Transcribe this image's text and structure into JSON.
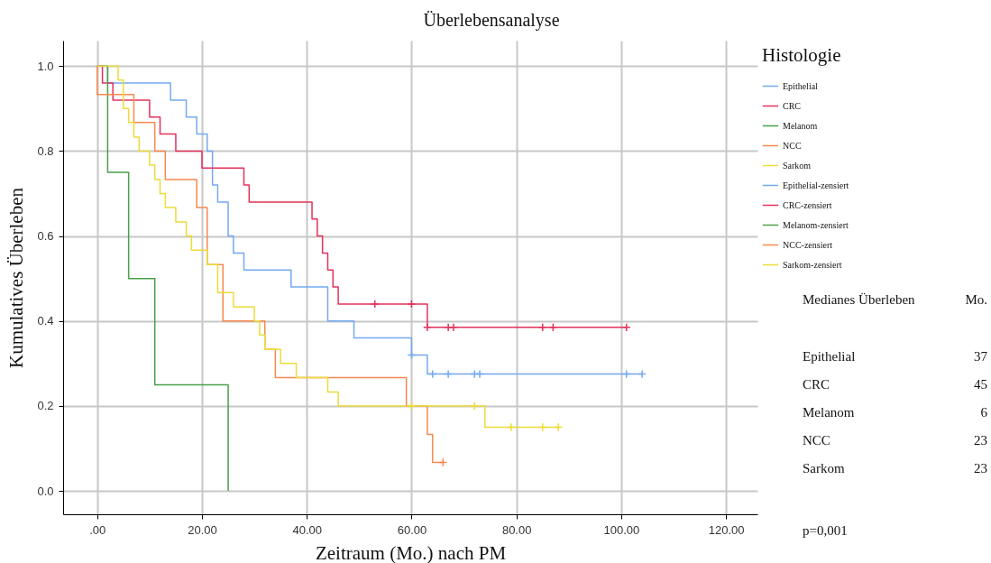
{
  "chart_data": {
    "type": "step",
    "title": "Überlebensanalyse",
    "xlabel": "Zeitraum (Mo.) nach PM",
    "ylabel": "Kumulatives Überleben",
    "legend_title": "Histologie",
    "legend": "right",
    "grid": true,
    "xlim": [
      -6.5,
      126
    ],
    "ylim": [
      -0.055,
      1.06
    ],
    "xticks": [
      {
        "value": 0,
        "label": ".00"
      },
      {
        "value": 20,
        "label": "20.00"
      },
      {
        "value": 40,
        "label": "40.00"
      },
      {
        "value": 60,
        "label": "60.00"
      },
      {
        "value": 80,
        "label": "80.00"
      },
      {
        "value": 100,
        "label": "100.00"
      },
      {
        "value": 120,
        "label": "120.00"
      }
    ],
    "yticks": [
      {
        "value": 0,
        "label": "0.0"
      },
      {
        "value": 0.2,
        "label": "0.2"
      },
      {
        "value": 0.4,
        "label": "0.4"
      },
      {
        "value": 0.6,
        "label": "0.6"
      },
      {
        "value": 0.8,
        "label": "0.8"
      },
      {
        "value": 1,
        "label": "1.0"
      }
    ],
    "series": [
      {
        "name": "Epithelial",
        "color": "#74a9ef",
        "x": [
          0,
          2,
          14,
          17,
          19,
          21,
          22,
          23,
          25,
          26,
          28,
          37,
          44,
          49,
          60,
          63,
          104
        ],
        "values": [
          1,
          0.96,
          0.92,
          0.88,
          0.84,
          0.8,
          0.72,
          0.68,
          0.6,
          0.56,
          0.52,
          0.48,
          0.4,
          0.36,
          0.32,
          0.275,
          0.275
        ]
      },
      {
        "name": "CRC",
        "color": "#e3325a",
        "x": [
          0,
          1,
          3,
          10,
          12,
          15,
          20,
          28,
          29,
          41,
          42,
          43,
          44,
          45,
          46,
          63,
          101
        ],
        "values": [
          1,
          0.96,
          0.92,
          0.88,
          0.84,
          0.8,
          0.76,
          0.72,
          0.68,
          0.64,
          0.6,
          0.56,
          0.52,
          0.48,
          0.44,
          0.385,
          0.385
        ]
      },
      {
        "name": "Melanom",
        "color": "#4aa04a",
        "x": [
          0,
          2,
          6,
          11,
          25
        ],
        "values": [
          1,
          0.75,
          0.5,
          0.25,
          0
        ]
      },
      {
        "name": "NCC",
        "color": "#f7894f",
        "x": [
          0,
          0,
          7,
          11,
          13,
          19,
          21,
          24,
          32,
          34,
          59,
          63,
          64,
          66
        ],
        "values": [
          1,
          0.933,
          0.867,
          0.8,
          0.733,
          0.667,
          0.533,
          0.4,
          0.333,
          0.267,
          0.2,
          0.133,
          0.067,
          0.067
        ]
      },
      {
        "name": "Sarkom",
        "color": "#ecdc3a",
        "x": [
          0,
          4,
          5,
          6,
          7,
          8,
          10,
          11,
          12,
          13,
          15,
          17,
          18,
          21,
          23,
          26,
          30,
          31,
          32,
          35,
          38,
          44,
          46,
          74,
          88
        ],
        "values": [
          1,
          0.967,
          0.9,
          0.867,
          0.833,
          0.8,
          0.767,
          0.733,
          0.7,
          0.667,
          0.633,
          0.6,
          0.567,
          0.533,
          0.467,
          0.433,
          0.4,
          0.367,
          0.333,
          0.3,
          0.267,
          0.233,
          0.2,
          0.15,
          0.15
        ]
      },
      {
        "name": "Epithelial-zensiert",
        "type": "scatter",
        "marker": "cross",
        "color": "#74a9ef",
        "x": [
          60,
          64,
          67,
          72,
          73,
          101,
          104
        ],
        "values": [
          0.32,
          0.275,
          0.275,
          0.275,
          0.275,
          0.275,
          0.275
        ]
      },
      {
        "name": "CRC-zensiert",
        "type": "scatter",
        "marker": "cross",
        "color": "#e3325a",
        "x": [
          53,
          60,
          63,
          67,
          68,
          85,
          87,
          101
        ],
        "values": [
          0.44,
          0.44,
          0.385,
          0.385,
          0.385,
          0.385,
          0.385,
          0.385
        ]
      },
      {
        "name": "Melanom-zensiert",
        "type": "scatter",
        "marker": "cross",
        "color": "#4aa04a"
      },
      {
        "name": "NCC-zensiert",
        "type": "scatter",
        "marker": "cross",
        "color": "#f7894f",
        "x": [
          66
        ],
        "values": [
          0.067
        ]
      },
      {
        "name": "Sarkom-zensiert",
        "type": "scatter",
        "marker": "cross",
        "color": "#ecdc3a",
        "x": [
          60,
          72,
          79,
          85,
          88
        ],
        "values": [
          0.2,
          0.2,
          0.15,
          0.15,
          0.15
        ]
      }
    ],
    "annotations": [
      "Medianes  Überleben",
      "Mo.",
      "Epithelial",
      "37",
      "CRC",
      "45",
      "Melanom",
      "6",
      "NCC",
      "23",
      "Sarkom",
      "23",
      "p=0,001"
    ]
  }
}
